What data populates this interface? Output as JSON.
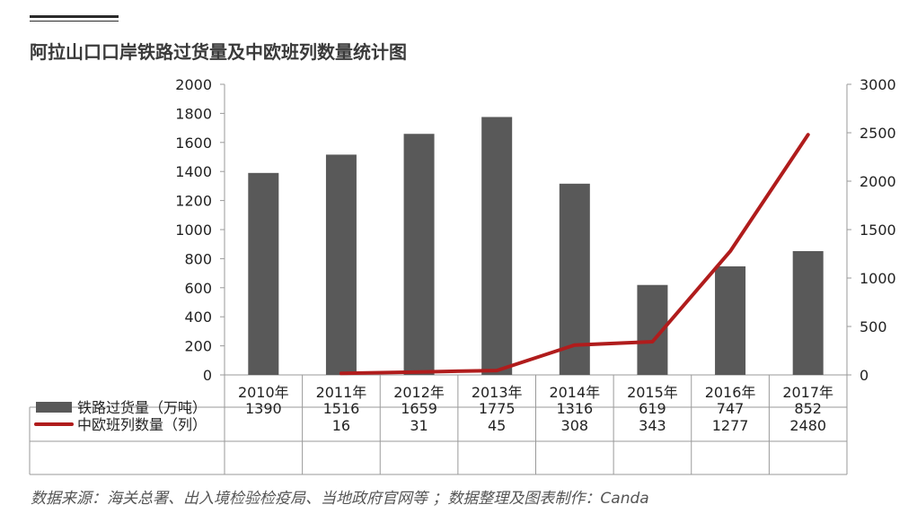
{
  "chart_data": {
    "type": "bar+line",
    "title": "阿拉山口口岸铁路过货量及中欧班列数量统计图",
    "categories": [
      "2010年",
      "2011年",
      "2012年",
      "2013年",
      "2014年",
      "2015年",
      "2016年",
      "2017年"
    ],
    "series": [
      {
        "name": "铁路过货量（万吨）",
        "type": "bar",
        "axis": "left",
        "color": "#595959",
        "values": [
          1390,
          1516,
          1659,
          1775,
          1316,
          619,
          747,
          852
        ],
        "labels": [
          "1390",
          "1516",
          "1659",
          "1775",
          "1316",
          "619",
          "747",
          "852"
        ]
      },
      {
        "name": "中欧班列数量（列）",
        "type": "line",
        "axis": "right",
        "color": "#b01c1c",
        "values": [
          null,
          16,
          31,
          45,
          308,
          343,
          1277,
          2480
        ],
        "labels": [
          "",
          "16",
          "31",
          "45",
          "308",
          "343",
          "1277",
          "2480"
        ]
      }
    ],
    "y_left": {
      "lim": [
        0,
        2000
      ],
      "ticks": [
        0,
        200,
        400,
        600,
        800,
        1000,
        1200,
        1400,
        1600,
        1800,
        2000
      ]
    },
    "y_right": {
      "lim": [
        0,
        3000
      ],
      "ticks": [
        0,
        500,
        1000,
        1500,
        2000,
        2500,
        3000
      ]
    },
    "grid": false,
    "legend": "data-table"
  },
  "source_note": "数据来源：海关总署、出入境检验检疫局、当地政府官网等 ；数据整理及图表制作：Canda"
}
